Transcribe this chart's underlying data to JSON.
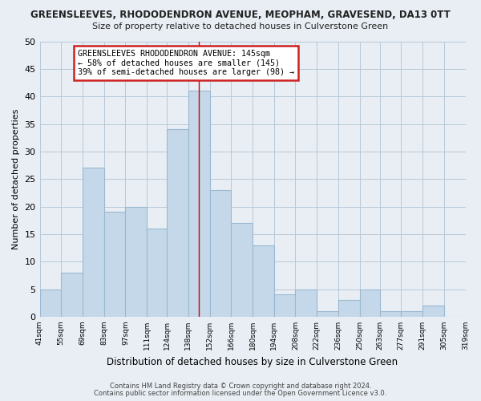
{
  "title": "GREENSLEEVES, RHODODENDRON AVENUE, MEOPHAM, GRAVESEND, DA13 0TT",
  "subtitle": "Size of property relative to detached houses in Culverstone Green",
  "xlabel": "Distribution of detached houses by size in Culverstone Green",
  "ylabel": "Number of detached properties",
  "bar_edges": [
    41,
    55,
    69,
    83,
    97,
    111,
    124,
    138,
    152,
    166,
    180,
    194,
    208,
    222,
    236,
    250,
    263,
    277,
    291,
    305,
    319
  ],
  "bar_heights": [
    5,
    8,
    27,
    19,
    20,
    16,
    34,
    41,
    23,
    17,
    13,
    4,
    5,
    1,
    3,
    5,
    1,
    1,
    2,
    0
  ],
  "bar_color": "#c5d8ea",
  "bar_edge_color": "#9ab8d0",
  "vline_x": 145,
  "vline_color": "#cc0000",
  "ylim": [
    0,
    50
  ],
  "yticks": [
    0,
    5,
    10,
    15,
    20,
    25,
    30,
    35,
    40,
    45,
    50
  ],
  "tick_labels": [
    "41sqm",
    "55sqm",
    "69sqm",
    "83sqm",
    "97sqm",
    "111sqm",
    "124sqm",
    "138sqm",
    "152sqm",
    "166sqm",
    "180sqm",
    "194sqm",
    "208sqm",
    "222sqm",
    "236sqm",
    "250sqm",
    "263sqm",
    "277sqm",
    "291sqm",
    "305sqm",
    "319sqm"
  ],
  "annotation_title": "GREENSLEEVES RHODODENDRON AVENUE: 145sqm",
  "annotation_line1": "← 58% of detached houses are smaller (145)",
  "annotation_line2": "39% of semi-detached houses are larger (98) →",
  "footnote1": "Contains HM Land Registry data © Crown copyright and database right 2024.",
  "footnote2": "Contains public sector information licensed under the Open Government Licence v3.0.",
  "bg_color": "#e8eef4",
  "plot_bg_color": "#e8eef4",
  "grid_color": "#b8c8d8"
}
